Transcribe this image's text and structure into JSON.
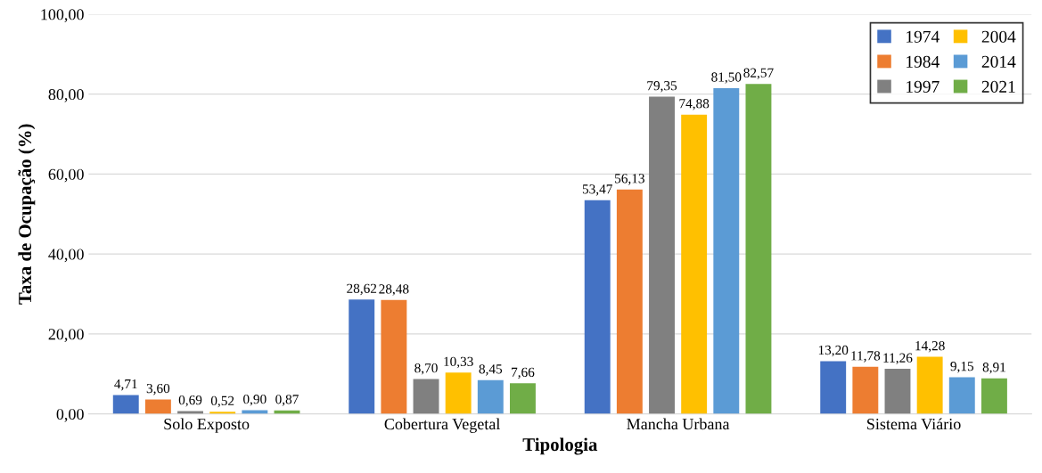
{
  "chart_data": {
    "type": "bar",
    "xlabel": "Tipologia",
    "ylabel": "Taxa de Ocupação (%)",
    "categories": [
      "Solo Exposto",
      "Cobertura Vegetal",
      "Mancha Urbana",
      "Sistema Viário"
    ],
    "series": [
      {
        "name": "1974",
        "color": "#4472c4",
        "values": [
          4.71,
          28.62,
          53.47,
          13.2
        ],
        "value_labels": [
          "4,71",
          "28,62",
          "53,47",
          "13,20"
        ]
      },
      {
        "name": "1984",
        "color": "#ed7d31",
        "values": [
          3.6,
          28.48,
          56.13,
          11.78
        ],
        "value_labels": [
          "3,60",
          "28,48",
          "56,13",
          "11,78"
        ]
      },
      {
        "name": "1997",
        "color": "#808080",
        "values": [
          0.69,
          8.7,
          79.35,
          11.26
        ],
        "value_labels": [
          "0,69",
          "8,70",
          "79,35",
          "11,26"
        ]
      },
      {
        "name": "2004",
        "color": "#ffc000",
        "values": [
          0.52,
          10.33,
          74.88,
          14.28
        ],
        "value_labels": [
          "0,52",
          "10,33",
          "74,88",
          "14,28"
        ]
      },
      {
        "name": "2014",
        "color": "#5b9bd5",
        "values": [
          0.9,
          8.45,
          81.5,
          9.15
        ],
        "value_labels": [
          "0,90",
          "8,45",
          "81,50",
          "9,15"
        ]
      },
      {
        "name": "2021",
        "color": "#70ad47",
        "values": [
          0.87,
          7.66,
          82.57,
          8.91
        ],
        "value_labels": [
          "0,87",
          "7,66",
          "82,57",
          "8,91"
        ]
      }
    ],
    "ylim": [
      0,
      100
    ],
    "yticks": [
      {
        "value": 0,
        "label": "0,00"
      },
      {
        "value": 20,
        "label": "20,00"
      },
      {
        "value": 40,
        "label": "40,00"
      },
      {
        "value": 60,
        "label": "60,00"
      },
      {
        "value": 80,
        "label": "80,00"
      },
      {
        "value": 100,
        "label": "100,00"
      }
    ],
    "grid": "y",
    "legend": "top right"
  }
}
